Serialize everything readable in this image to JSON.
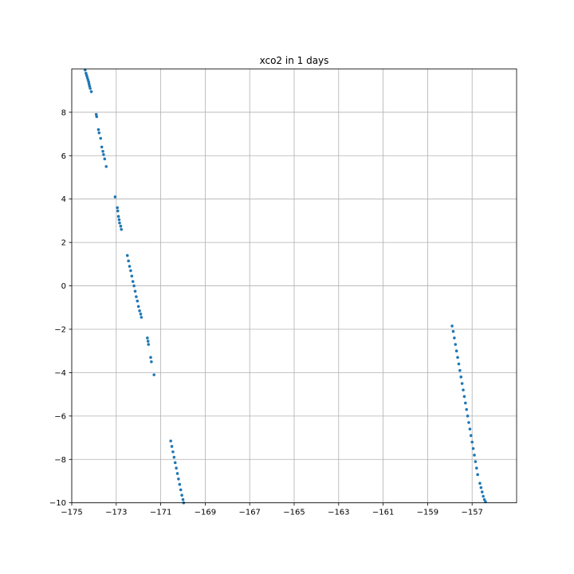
{
  "chart_data": {
    "type": "scatter",
    "title": "xco2 in 1 days",
    "xlabel": "",
    "ylabel": "",
    "xlim": [
      -175,
      -155
    ],
    "ylim": [
      -10,
      10
    ],
    "grid": true,
    "legend": "none",
    "marker_color": "#1f77b4",
    "xticks": [
      -175,
      -173,
      -171,
      -169,
      -167,
      -165,
      -163,
      -161,
      -159,
      -157
    ],
    "xtick_labels": [
      "−175",
      "−173",
      "−171",
      "−169",
      "−167",
      "−165",
      "−163",
      "−161",
      "−159",
      "−157"
    ],
    "yticks": [
      -10,
      -8,
      -6,
      -4,
      -2,
      0,
      2,
      4,
      6,
      8
    ],
    "ytick_labels": [
      "−10",
      "−8",
      "−6",
      "−4",
      "−2",
      "0",
      "2",
      "4",
      "6",
      "8"
    ],
    "series": [
      {
        "points": [
          [
            -174.4,
            9.95
          ],
          [
            -174.36,
            9.8
          ],
          [
            -174.33,
            9.7
          ],
          [
            -174.3,
            9.6
          ],
          [
            -174.27,
            9.5
          ],
          [
            -174.24,
            9.4
          ],
          [
            -174.22,
            9.3
          ],
          [
            -174.2,
            9.2
          ],
          [
            -174.17,
            9.1
          ],
          [
            -174.12,
            8.95
          ],
          [
            -173.9,
            7.9
          ],
          [
            -173.88,
            7.8
          ],
          [
            -173.8,
            7.2
          ],
          [
            -173.77,
            7.05
          ],
          [
            -173.7,
            6.8
          ],
          [
            -173.65,
            6.4
          ],
          [
            -173.6,
            6.2
          ],
          [
            -173.57,
            6.05
          ],
          [
            -173.52,
            5.85
          ],
          [
            -173.45,
            5.5
          ],
          [
            -173.05,
            4.1
          ],
          [
            -172.95,
            3.6
          ],
          [
            -172.93,
            3.45
          ],
          [
            -172.9,
            3.2
          ],
          [
            -172.87,
            3.05
          ],
          [
            -172.85,
            2.9
          ],
          [
            -172.8,
            2.75
          ],
          [
            -172.77,
            2.6
          ],
          [
            -172.5,
            1.4
          ],
          [
            -172.45,
            1.15
          ],
          [
            -172.4,
            0.9
          ],
          [
            -172.35,
            0.7
          ],
          [
            -172.3,
            0.45
          ],
          [
            -172.25,
            0.2
          ],
          [
            -172.2,
            0.0
          ],
          [
            -172.15,
            -0.25
          ],
          [
            -172.1,
            -0.5
          ],
          [
            -172.05,
            -0.7
          ],
          [
            -172.0,
            -0.95
          ],
          [
            -171.95,
            -1.15
          ],
          [
            -171.9,
            -1.3
          ],
          [
            -171.87,
            -1.45
          ],
          [
            -171.6,
            -2.4
          ],
          [
            -171.57,
            -2.55
          ],
          [
            -171.55,
            -2.7
          ],
          [
            -171.45,
            -3.3
          ],
          [
            -171.42,
            -3.5
          ],
          [
            -171.3,
            -4.1
          ],
          [
            -170.55,
            -7.15
          ],
          [
            -170.5,
            -7.4
          ],
          [
            -170.45,
            -7.65
          ],
          [
            -170.4,
            -7.9
          ],
          [
            -170.35,
            -8.15
          ],
          [
            -170.3,
            -8.4
          ],
          [
            -170.25,
            -8.65
          ],
          [
            -170.2,
            -8.9
          ],
          [
            -170.15,
            -9.15
          ],
          [
            -170.1,
            -9.4
          ],
          [
            -170.05,
            -9.65
          ],
          [
            -170.0,
            -9.85
          ],
          [
            -169.97,
            -10.0
          ],
          [
            -157.9,
            -1.85
          ],
          [
            -157.85,
            -2.1
          ],
          [
            -157.8,
            -2.4
          ],
          [
            -157.75,
            -2.7
          ],
          [
            -157.7,
            -3.0
          ],
          [
            -157.65,
            -3.3
          ],
          [
            -157.6,
            -3.6
          ],
          [
            -157.55,
            -3.9
          ],
          [
            -157.5,
            -4.2
          ],
          [
            -157.45,
            -4.5
          ],
          [
            -157.4,
            -4.8
          ],
          [
            -157.35,
            -5.1
          ],
          [
            -157.3,
            -5.4
          ],
          [
            -157.25,
            -5.7
          ],
          [
            -157.2,
            -6.0
          ],
          [
            -157.15,
            -6.3
          ],
          [
            -157.1,
            -6.6
          ],
          [
            -157.05,
            -6.9
          ],
          [
            -157.0,
            -7.2
          ],
          [
            -156.95,
            -7.5
          ],
          [
            -156.9,
            -7.8
          ],
          [
            -156.85,
            -8.1
          ],
          [
            -156.8,
            -8.4
          ],
          [
            -156.75,
            -8.7
          ],
          [
            -156.65,
            -9.1
          ],
          [
            -156.6,
            -9.3
          ],
          [
            -156.55,
            -9.5
          ],
          [
            -156.5,
            -9.7
          ],
          [
            -156.45,
            -9.85
          ],
          [
            -156.4,
            -9.95
          ]
        ]
      }
    ]
  }
}
